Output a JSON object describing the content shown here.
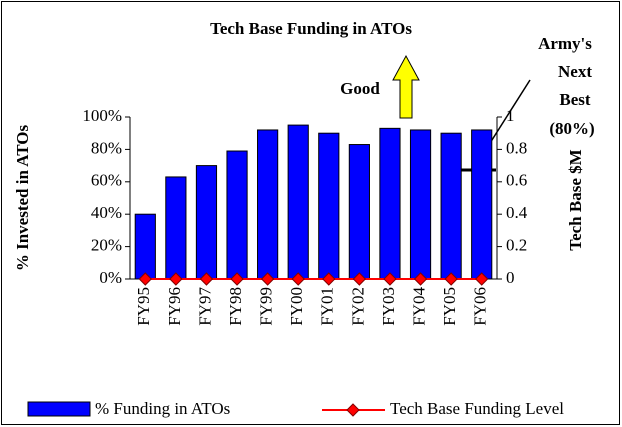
{
  "chart_data": {
    "type": "bar",
    "title": "Tech Base Funding in ATOs",
    "y_label": "% Invested in ATOs",
    "y2_label": "Tech Base $M",
    "annotations": [
      "Good",
      "Army's",
      "Next",
      "Best",
      "(80%)"
    ],
    "categories": [
      "FY95",
      "FY96",
      "FY97",
      "FY98",
      "FY99",
      "FY00",
      "FY01",
      "FY02",
      "FY03",
      "FY04",
      "FY05",
      "FY06"
    ],
    "series": [
      {
        "name": "% Funding in ATOs",
        "color": "#0000ff",
        "values": [
          40,
          63,
          70,
          79,
          92,
          95,
          90,
          83,
          93,
          92,
          90,
          92
        ]
      },
      {
        "name": "Tech Base Funding Level",
        "color": "#ff0000",
        "axis": "y2",
        "values": [
          0,
          0,
          0,
          0,
          0,
          0,
          0,
          0,
          0,
          0,
          0,
          0
        ]
      }
    ],
    "ylim": [
      0,
      100
    ],
    "yticks": [
      {
        "value": 0,
        "label": "0%"
      },
      {
        "value": 20,
        "label": "20%"
      },
      {
        "value": 40,
        "label": "40%"
      },
      {
        "value": 60,
        "label": "60%"
      },
      {
        "value": 80,
        "label": "80%"
      },
      {
        "value": 100,
        "label": "100%"
      }
    ],
    "y2lim": [
      0,
      1
    ],
    "y2ticks": [
      0,
      0.2,
      0.4,
      0.6,
      0.8,
      1
    ],
    "legend": "bottom"
  }
}
